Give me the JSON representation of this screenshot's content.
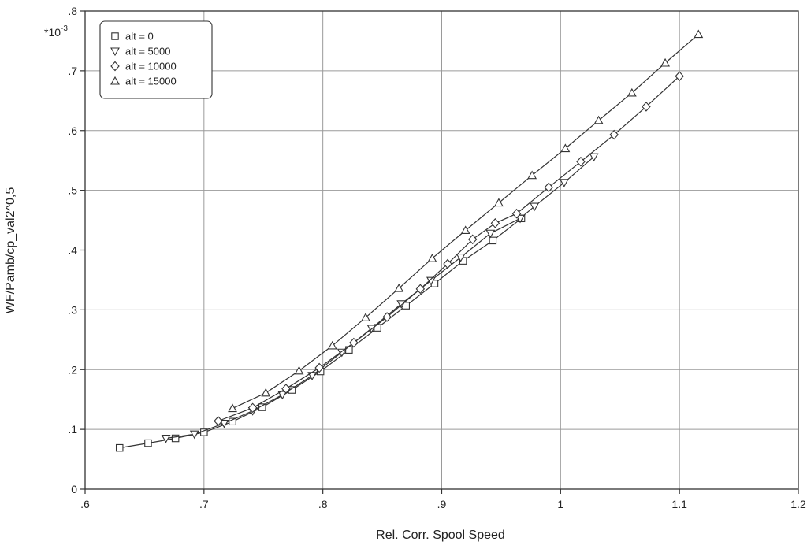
{
  "chart_data": {
    "type": "line",
    "title": "",
    "xlabel": "Rel. Corr. Spool Speed",
    "ylabel": "WF/Pamb/cp_val2^0,5",
    "y_multiplier_label": "*10",
    "y_multiplier_exponent": "-3",
    "xlim": [
      0.6,
      1.2
    ],
    "ylim": [
      0,
      0.8
    ],
    "x_ticks": [
      0.6,
      0.7,
      0.8,
      0.9,
      1.0,
      1.1,
      1.2
    ],
    "x_tick_labels": [
      ".6",
      ".7",
      ".8",
      ".9",
      "1",
      "1.1",
      "1.2"
    ],
    "y_ticks": [
      0,
      0.1,
      0.2,
      0.3,
      0.4,
      0.5,
      0.6,
      0.7,
      0.8
    ],
    "y_tick_labels": [
      "0",
      ".1",
      ".2",
      ".3",
      ".4",
      ".5",
      ".6",
      ".7",
      ".8"
    ],
    "grid": true,
    "legend_position": "top-left",
    "series": [
      {
        "name": "alt = 0",
        "marker": "square",
        "x": [
          0.629,
          0.653,
          0.676,
          0.7,
          0.724,
          0.749,
          0.774,
          0.798,
          0.822,
          0.846,
          0.87,
          0.894,
          0.918,
          0.943,
          0.967
        ],
        "y": [
          0.069,
          0.077,
          0.085,
          0.095,
          0.113,
          0.137,
          0.166,
          0.197,
          0.233,
          0.27,
          0.307,
          0.344,
          0.382,
          0.416,
          0.453
        ]
      },
      {
        "name": "alt = 5000",
        "marker": "triangle-down",
        "x": [
          0.668,
          0.692,
          0.717,
          0.741,
          0.766,
          0.791,
          0.816,
          0.841,
          0.866,
          0.891,
          0.916,
          0.941,
          0.966,
          0.978,
          1.003,
          1.028
        ],
        "y": [
          0.085,
          0.092,
          0.11,
          0.131,
          0.158,
          0.19,
          0.229,
          0.269,
          0.31,
          0.349,
          0.388,
          0.428,
          0.453,
          0.473,
          0.513,
          0.556
        ]
      },
      {
        "name": "alt = 10000",
        "marker": "diamond",
        "x": [
          0.712,
          0.741,
          0.769,
          0.797,
          0.826,
          0.854,
          0.882,
          0.905,
          0.926,
          0.945,
          0.963,
          0.99,
          1.017,
          1.045,
          1.072,
          1.1
        ],
        "y": [
          0.114,
          0.136,
          0.168,
          0.203,
          0.245,
          0.288,
          0.335,
          0.377,
          0.418,
          0.445,
          0.461,
          0.505,
          0.548,
          0.593,
          0.64,
          0.691
        ]
      },
      {
        "name": "alt = 15000",
        "marker": "triangle-up",
        "x": [
          0.724,
          0.752,
          0.78,
          0.808,
          0.836,
          0.864,
          0.892,
          0.92,
          0.948,
          0.976,
          1.004,
          1.032,
          1.06,
          1.088,
          1.116
        ],
        "y": [
          0.135,
          0.161,
          0.198,
          0.24,
          0.287,
          0.336,
          0.386,
          0.433,
          0.479,
          0.525,
          0.57,
          0.617,
          0.663,
          0.713,
          0.761
        ]
      }
    ]
  }
}
